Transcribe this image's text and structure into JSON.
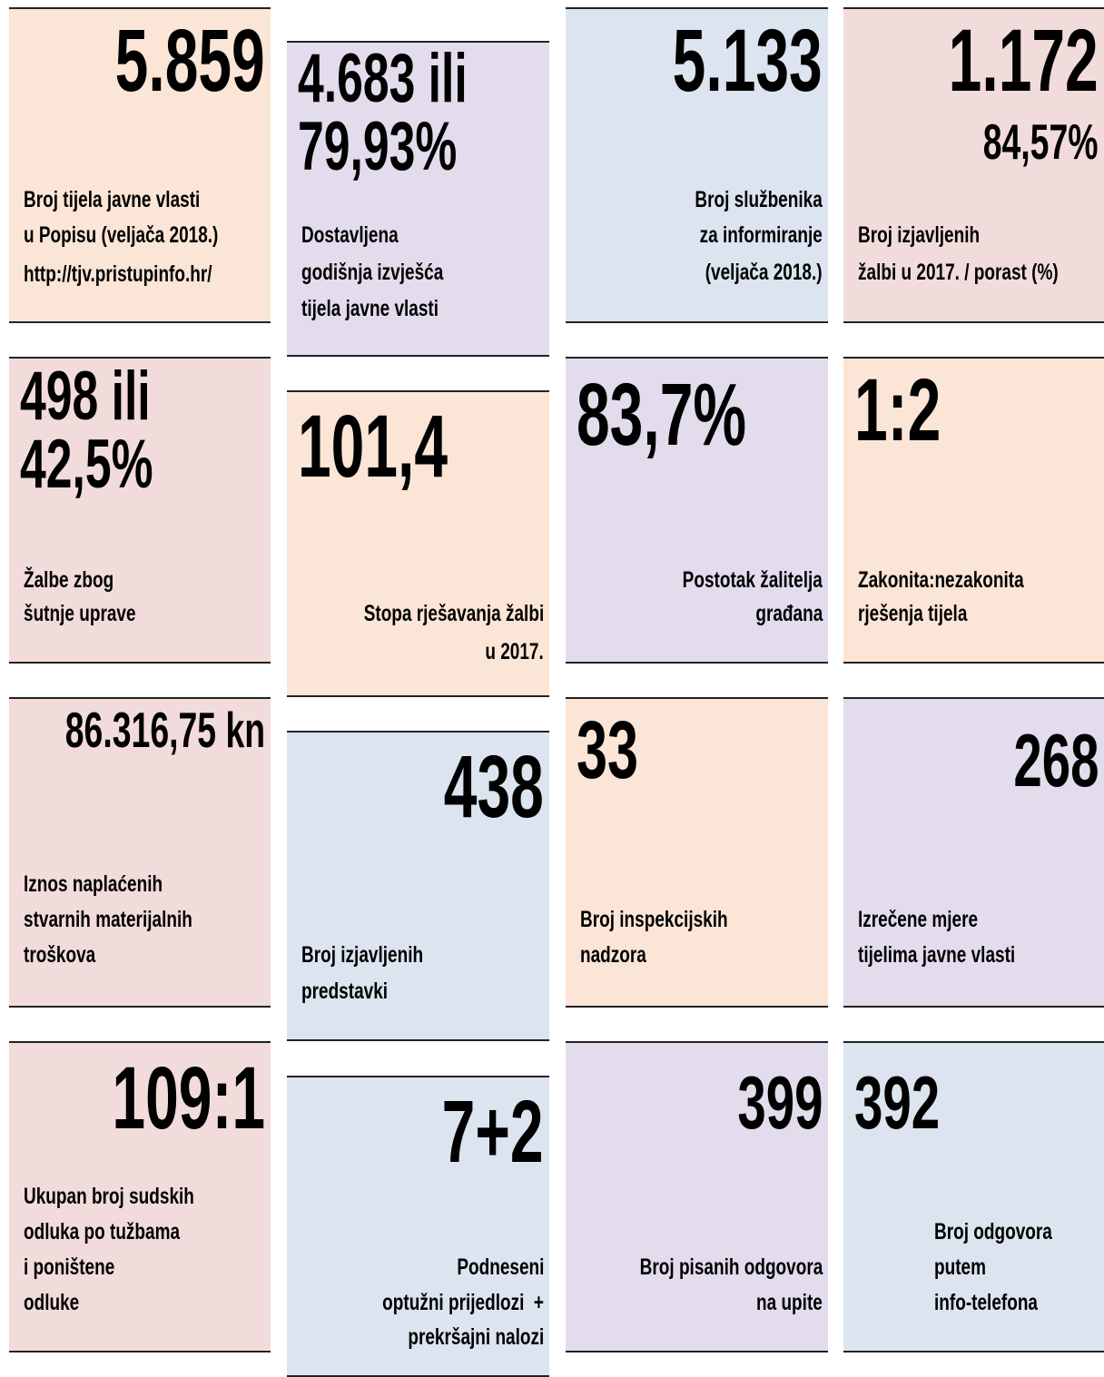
{
  "cards": [
    {
      "value": [
        "5.859"
      ],
      "label": [
        "Broj tijela javne vlasti",
        "u Popisu (veljača 2018.)",
        "http://tjv.pristupinfo.hr/"
      ]
    },
    {
      "value": [
        "4.683 ili",
        "79,93%"
      ],
      "label": [
        "Dostavljena",
        "godišnja izvješća",
        "tijela javne vlasti"
      ]
    },
    {
      "value": [
        "5.133"
      ],
      "label": [
        "Broj službenika",
        "za informiranje",
        "(veljača 2018.)"
      ]
    },
    {
      "value": [
        "1.172",
        "84,57%"
      ],
      "label": [
        "Broj izjavljenih",
        "žalbi u 2017. / porast (%)"
      ]
    },
    {
      "value": [
        "498 ili",
        "42,5%"
      ],
      "label": [
        "Žalbe zbog",
        "šutnje uprave"
      ]
    },
    {
      "value": [
        "101,4"
      ],
      "label": [
        "Stopa rješavanja žalbi",
        "u 2017."
      ]
    },
    {
      "value": [
        "83,7%"
      ],
      "label": [
        "Postotak žalitelja",
        "građana"
      ]
    },
    {
      "value": [
        "1:2"
      ],
      "label": [
        "Zakonita:nezakonita",
        "rješenja tijela"
      ]
    },
    {
      "value": [
        "86.316,75 kn"
      ],
      "label": [
        "Iznos naplaćenih",
        "stvarnih materijalnih",
        "troškova"
      ]
    },
    {
      "value": [
        "438"
      ],
      "label": [
        "Broj izjavljenih",
        "predstavki"
      ]
    },
    {
      "value": [
        "33"
      ],
      "label": [
        "Broj inspekcijskih",
        "nadzora"
      ]
    },
    {
      "value": [
        "268"
      ],
      "label": [
        "Izrečene mjere",
        "tijelima javne vlasti"
      ]
    },
    {
      "value": [
        "109:1"
      ],
      "label": [
        "Ukupan broj sudskih",
        "odluka po tužbama",
        "i poništene",
        "odluke"
      ]
    },
    {
      "value": [
        "7+2"
      ],
      "label": [
        "Podneseni",
        "optužni prijedlozi  +",
        "prekršajni nalozi"
      ]
    },
    {
      "value": [
        "399"
      ],
      "label": [
        "Broj pisanih odgovora",
        "na upite"
      ]
    },
    {
      "value": [
        "392"
      ],
      "label": [
        "Broj odgovora",
        "putem",
        "info-telefona"
      ]
    }
  ]
}
